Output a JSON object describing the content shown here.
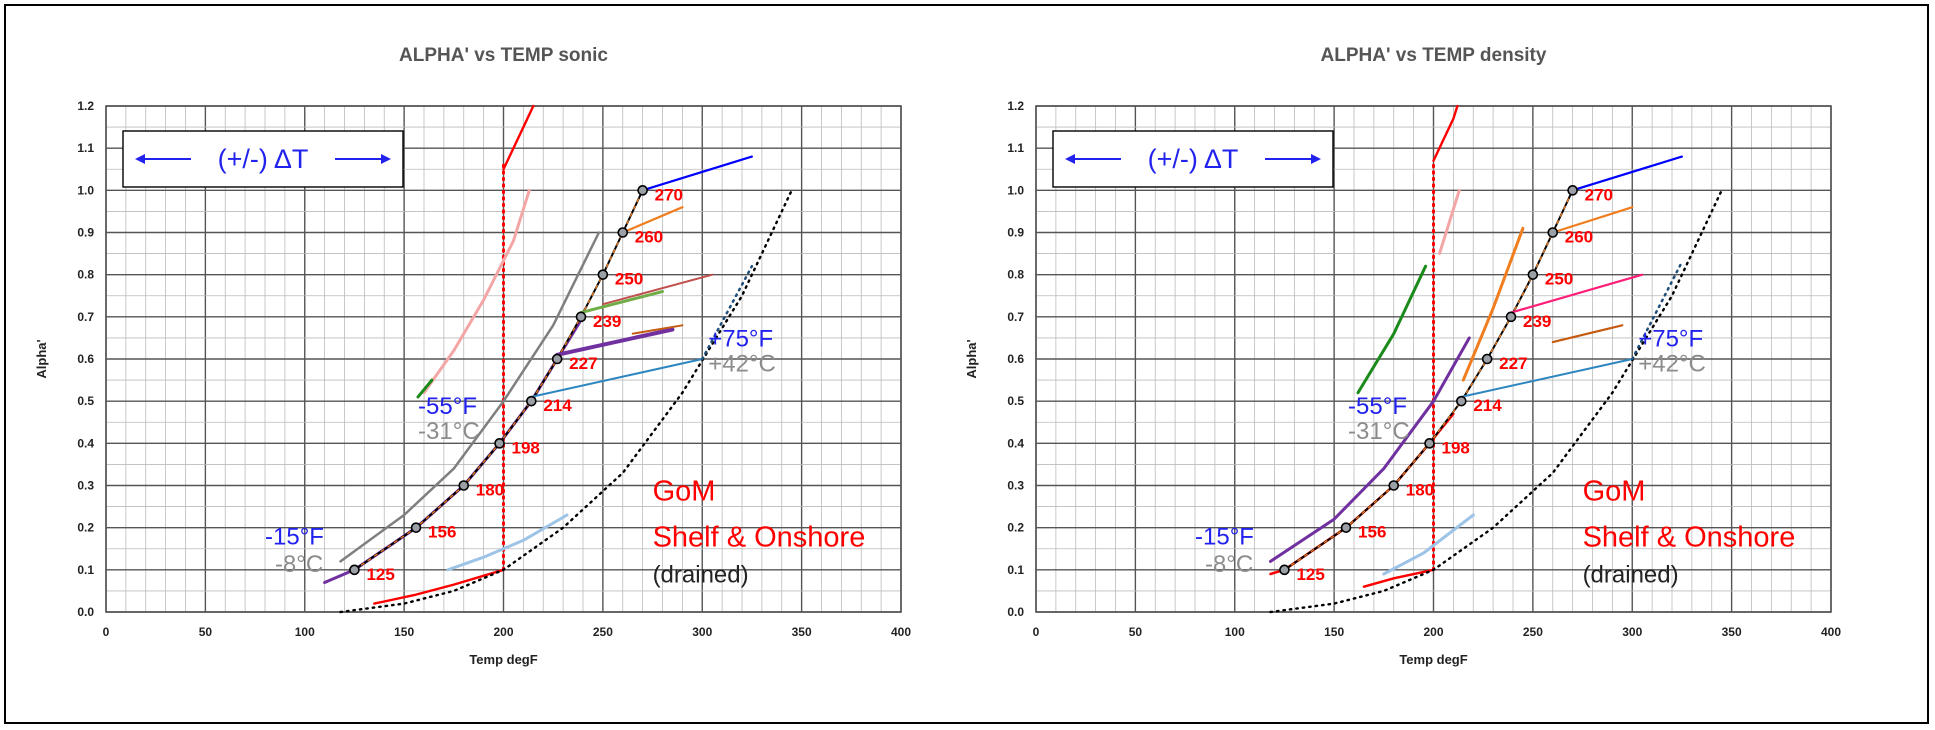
{
  "colors": {
    "grid_major": "#555555",
    "grid_minor": "#bbbbbb",
    "axis_text": "#222222",
    "title": "#555555",
    "red": "#ff0000",
    "blue": "#2222ee",
    "gray": "#8c8c8c",
    "black_curve": "#000000",
    "orange": "#f07d1e"
  },
  "chart_data": [
    {
      "type": "line",
      "title": "ALPHA' vs TEMP sonic",
      "xlabel": "Temp degF",
      "ylabel": "Alpha'",
      "xlim": [
        0,
        400
      ],
      "ylim": [
        0,
        1.2
      ],
      "x_ticks": [
        "0",
        "50",
        "100",
        "150",
        "200",
        "250",
        "300",
        "350",
        "400"
      ],
      "y_ticks": [
        "0.0",
        "0.1",
        "0.2",
        "0.3",
        "0.4",
        "0.5",
        "0.6",
        "0.7",
        "0.8",
        "0.9",
        "1.0",
        "1.1",
        "1.2"
      ],
      "grid": true,
      "legend_box": {
        "text": "(+/-) ΔT",
        "position": "top-left"
      },
      "point_labels": [
        "125",
        "156",
        "180",
        "198",
        "214",
        "227",
        "239",
        "250",
        "260",
        "270"
      ],
      "main_points": [
        {
          "x": 125,
          "y": 0.1
        },
        {
          "x": 156,
          "y": 0.2
        },
        {
          "x": 180,
          "y": 0.3
        },
        {
          "x": 198,
          "y": 0.4
        },
        {
          "x": 214,
          "y": 0.5
        },
        {
          "x": 227,
          "y": 0.6
        },
        {
          "x": 239,
          "y": 0.7
        },
        {
          "x": 250,
          "y": 0.8
        },
        {
          "x": 260,
          "y": 0.9
        },
        {
          "x": 270,
          "y": 1.0
        }
      ],
      "series": [
        {
          "color": "#ff0000",
          "style": "solid",
          "width": 2.4,
          "x": [
            135,
            155,
            175,
            200
          ],
          "y": [
            0.02,
            0.04,
            0.065,
            0.1
          ]
        },
        {
          "color": "#ff0000",
          "style": "solid",
          "width": 2.4,
          "x": [
            200,
            205,
            210,
            215
          ],
          "y": [
            1.05,
            1.1,
            1.15,
            1.2
          ]
        },
        {
          "color": "#ff0000",
          "style": "dotted",
          "width": 3,
          "x": [
            200,
            200
          ],
          "y": [
            0.1,
            1.06
          ]
        },
        {
          "color": "#000000",
          "style": "dotted",
          "width": 2.4,
          "x": [
            118,
            150,
            175,
            200,
            230,
            260,
            290,
            320,
            345
          ],
          "y": [
            0.0,
            0.02,
            0.05,
            0.1,
            0.2,
            0.33,
            0.52,
            0.75,
            1.0
          ]
        },
        {
          "color": "#7030a0",
          "style": "solid",
          "width": 3,
          "x": [
            110,
            125,
            156,
            180,
            198,
            214,
            227,
            240
          ],
          "y": [
            0.07,
            0.1,
            0.2,
            0.3,
            0.4,
            0.5,
            0.6,
            0.7
          ]
        },
        {
          "color": "#000000",
          "style": "solid",
          "width": 2,
          "x": [
            125,
            156,
            180,
            198,
            214,
            227,
            239,
            250,
            260,
            270
          ],
          "y": [
            0.1,
            0.2,
            0.3,
            0.4,
            0.5,
            0.6,
            0.7,
            0.8,
            0.9,
            1.0
          ]
        },
        {
          "color": "#7f7f7f",
          "style": "solid",
          "width": 2.5,
          "x": [
            118,
            150,
            175,
            200,
            225,
            248
          ],
          "y": [
            0.12,
            0.23,
            0.34,
            0.5,
            0.68,
            0.9
          ]
        },
        {
          "color": "#f4a6a6",
          "style": "solid",
          "width": 3,
          "x": [
            160,
            175,
            190,
            205,
            213
          ],
          "y": [
            0.52,
            0.62,
            0.74,
            0.88,
            1.0
          ]
        },
        {
          "color": "#1a8a1a",
          "style": "solid",
          "width": 3,
          "x": [
            157,
            164
          ],
          "y": [
            0.51,
            0.55
          ]
        },
        {
          "color": "#9dc3e6",
          "style": "solid",
          "width": 3,
          "x": [
            172,
            190,
            210,
            232
          ],
          "y": [
            0.1,
            0.13,
            0.17,
            0.23
          ]
        },
        {
          "color": "#0000ff",
          "style": "solid",
          "width": 2.2,
          "x": [
            270,
            325
          ],
          "y": [
            1.0,
            1.08
          ]
        },
        {
          "color": "#f07d1e",
          "style": "solid",
          "width": 2.2,
          "x": [
            260,
            290
          ],
          "y": [
            0.9,
            0.96
          ]
        },
        {
          "color": "#c0504d",
          "style": "solid",
          "width": 2,
          "x": [
            250,
            305
          ],
          "y": [
            0.73,
            0.8
          ]
        },
        {
          "color": "#70ad47",
          "style": "solid",
          "width": 3,
          "x": [
            239,
            280
          ],
          "y": [
            0.71,
            0.76
          ]
        },
        {
          "color": "#7030a0",
          "style": "solid",
          "width": 4,
          "x": [
            227,
            285
          ],
          "y": [
            0.61,
            0.67
          ]
        },
        {
          "color": "#c55a11",
          "style": "solid",
          "width": 2,
          "x": [
            265,
            290
          ],
          "y": [
            0.66,
            0.68
          ]
        },
        {
          "color": "#2e86c1",
          "style": "solid",
          "width": 2,
          "x": [
            214,
            300
          ],
          "y": [
            0.51,
            0.6
          ]
        },
        {
          "color": "#1f4e79",
          "style": "dotted",
          "width": 2.5,
          "x": [
            300,
            325
          ],
          "y": [
            0.6,
            0.82
          ]
        }
      ],
      "annotations": [
        {
          "text": "-55°F",
          "color": "#2222ee",
          "x": 157,
          "y": 0.47,
          "size": 24
        },
        {
          "text": "-31°C",
          "color": "#8c8c8c",
          "x": 157,
          "y": 0.41,
          "size": 24
        },
        {
          "text": "-15°F",
          "color": "#2222ee",
          "x": 80,
          "y": 0.16,
          "size": 24
        },
        {
          "text": "-8°C",
          "color": "#8c8c8c",
          "x": 85,
          "y": 0.095,
          "size": 24
        },
        {
          "text": "+75°F",
          "color": "#2222ee",
          "x": 303,
          "y": 0.63,
          "size": 24
        },
        {
          "text": "+42°C",
          "color": "#8c8c8c",
          "x": 303,
          "y": 0.57,
          "size": 24
        },
        {
          "text": "GoM",
          "color": "#ff0000",
          "x": 275,
          "y": 0.265,
          "size": 29
        },
        {
          "text": "Shelf & Onshore",
          "color": "#ff0000",
          "x": 275,
          "y": 0.155,
          "size": 29
        },
        {
          "text": "(drained)",
          "color": "#222222",
          "x": 275,
          "y": 0.07,
          "size": 24
        }
      ]
    },
    {
      "type": "line",
      "title": "ALPHA' vs TEMP density",
      "xlabel": "Temp degF",
      "ylabel": "Alpha'",
      "xlim": [
        0,
        400
      ],
      "ylim": [
        0,
        1.2
      ],
      "x_ticks": [
        "0",
        "50",
        "100",
        "150",
        "200",
        "250",
        "300",
        "350",
        "400"
      ],
      "y_ticks": [
        "0.0",
        "0.1",
        "0.2",
        "0.3",
        "0.4",
        "0.5",
        "0.6",
        "0.7",
        "0.8",
        "0.9",
        "1.0",
        "1.1",
        "1.2"
      ],
      "grid": true,
      "legend_box": {
        "text": "(+/-) ΔT",
        "position": "top-left"
      },
      "point_labels": [
        "125",
        "156",
        "180",
        "198",
        "214",
        "227",
        "239",
        "250",
        "260",
        "270"
      ],
      "main_points": [
        {
          "x": 125,
          "y": 0.1
        },
        {
          "x": 156,
          "y": 0.2
        },
        {
          "x": 180,
          "y": 0.3
        },
        {
          "x": 198,
          "y": 0.4
        },
        {
          "x": 214,
          "y": 0.5
        },
        {
          "x": 227,
          "y": 0.6
        },
        {
          "x": 239,
          "y": 0.7
        },
        {
          "x": 250,
          "y": 0.8
        },
        {
          "x": 260,
          "y": 0.9
        },
        {
          "x": 270,
          "y": 1.0
        }
      ],
      "series": [
        {
          "color": "#ff0000",
          "style": "solid",
          "width": 2.4,
          "x": [
            165,
            180,
            200
          ],
          "y": [
            0.06,
            0.08,
            0.1
          ]
        },
        {
          "color": "#ff0000",
          "style": "solid",
          "width": 2.4,
          "x": [
            200,
            205,
            210,
            212
          ],
          "y": [
            1.07,
            1.12,
            1.17,
            1.2
          ]
        },
        {
          "color": "#ff0000",
          "style": "dotted",
          "width": 3,
          "x": [
            200,
            200
          ],
          "y": [
            0.1,
            1.07
          ]
        },
        {
          "color": "#000000",
          "style": "dotted",
          "width": 2.4,
          "x": [
            118,
            150,
            175,
            200,
            230,
            260,
            290,
            320,
            345
          ],
          "y": [
            0.0,
            0.02,
            0.05,
            0.1,
            0.2,
            0.33,
            0.52,
            0.75,
            1.0
          ]
        },
        {
          "color": "#7030a0",
          "style": "solid",
          "width": 3,
          "x": [
            118,
            150,
            175,
            200,
            218
          ],
          "y": [
            0.12,
            0.22,
            0.34,
            0.5,
            0.65
          ]
        },
        {
          "color": "#ff0000",
          "style": "solid",
          "width": 2.5,
          "x": [
            118,
            125,
            156,
            180,
            198,
            210
          ],
          "y": [
            0.09,
            0.1,
            0.2,
            0.3,
            0.4,
            0.47
          ]
        },
        {
          "color": "#000000",
          "style": "solid",
          "width": 2,
          "x": [
            125,
            156,
            180,
            198,
            214,
            227,
            239,
            250,
            260,
            270
          ],
          "y": [
            0.1,
            0.2,
            0.3,
            0.4,
            0.5,
            0.6,
            0.7,
            0.8,
            0.9,
            1.0
          ]
        },
        {
          "color": "#f07d1e",
          "style": "solid",
          "width": 3,
          "x": [
            215,
            230,
            245
          ],
          "y": [
            0.55,
            0.72,
            0.91
          ]
        },
        {
          "color": "#1a8a1a",
          "style": "solid",
          "width": 3,
          "x": [
            162,
            180,
            196
          ],
          "y": [
            0.52,
            0.66,
            0.82
          ]
        },
        {
          "color": "#f4a6a6",
          "style": "solid",
          "width": 3,
          "x": [
            203,
            213
          ],
          "y": [
            0.85,
            1.0
          ]
        },
        {
          "color": "#9dc3e6",
          "style": "solid",
          "width": 3,
          "x": [
            175,
            195,
            220
          ],
          "y": [
            0.09,
            0.14,
            0.23
          ]
        },
        {
          "color": "#0000ff",
          "style": "solid",
          "width": 2.2,
          "x": [
            270,
            325
          ],
          "y": [
            1.0,
            1.08
          ]
        },
        {
          "color": "#f07d1e",
          "style": "solid",
          "width": 2.2,
          "x": [
            260,
            300
          ],
          "y": [
            0.9,
            0.96
          ]
        },
        {
          "color": "#ff1e78",
          "style": "solid",
          "width": 2.2,
          "x": [
            239,
            305
          ],
          "y": [
            0.71,
            0.8
          ]
        },
        {
          "color": "#c55a11",
          "style": "solid",
          "width": 2.2,
          "x": [
            260,
            295
          ],
          "y": [
            0.64,
            0.68
          ]
        },
        {
          "color": "#2e86c1",
          "style": "solid",
          "width": 2,
          "x": [
            214,
            300
          ],
          "y": [
            0.51,
            0.6
          ]
        },
        {
          "color": "#1f4e79",
          "style": "dotted",
          "width": 2.5,
          "x": [
            300,
            325
          ],
          "y": [
            0.6,
            0.83
          ]
        }
      ],
      "annotations": [
        {
          "text": "-55°F",
          "color": "#2222ee",
          "x": 157,
          "y": 0.47,
          "size": 24
        },
        {
          "text": "-31°C",
          "color": "#8c8c8c",
          "x": 157,
          "y": 0.41,
          "size": 24
        },
        {
          "text": "-15°F",
          "color": "#2222ee",
          "x": 80,
          "y": 0.16,
          "size": 24
        },
        {
          "text": "-8°C",
          "color": "#8c8c8c",
          "x": 85,
          "y": 0.095,
          "size": 24
        },
        {
          "text": "+75°F",
          "color": "#2222ee",
          "x": 303,
          "y": 0.63,
          "size": 24
        },
        {
          "text": "+42°C",
          "color": "#8c8c8c",
          "x": 303,
          "y": 0.57,
          "size": 24
        },
        {
          "text": "GoM",
          "color": "#ff0000",
          "x": 275,
          "y": 0.265,
          "size": 29
        },
        {
          "text": "Shelf & Onshore",
          "color": "#ff0000",
          "x": 275,
          "y": 0.155,
          "size": 29
        },
        {
          "text": "(drained)",
          "color": "#222222",
          "x": 275,
          "y": 0.07,
          "size": 24
        }
      ]
    }
  ]
}
